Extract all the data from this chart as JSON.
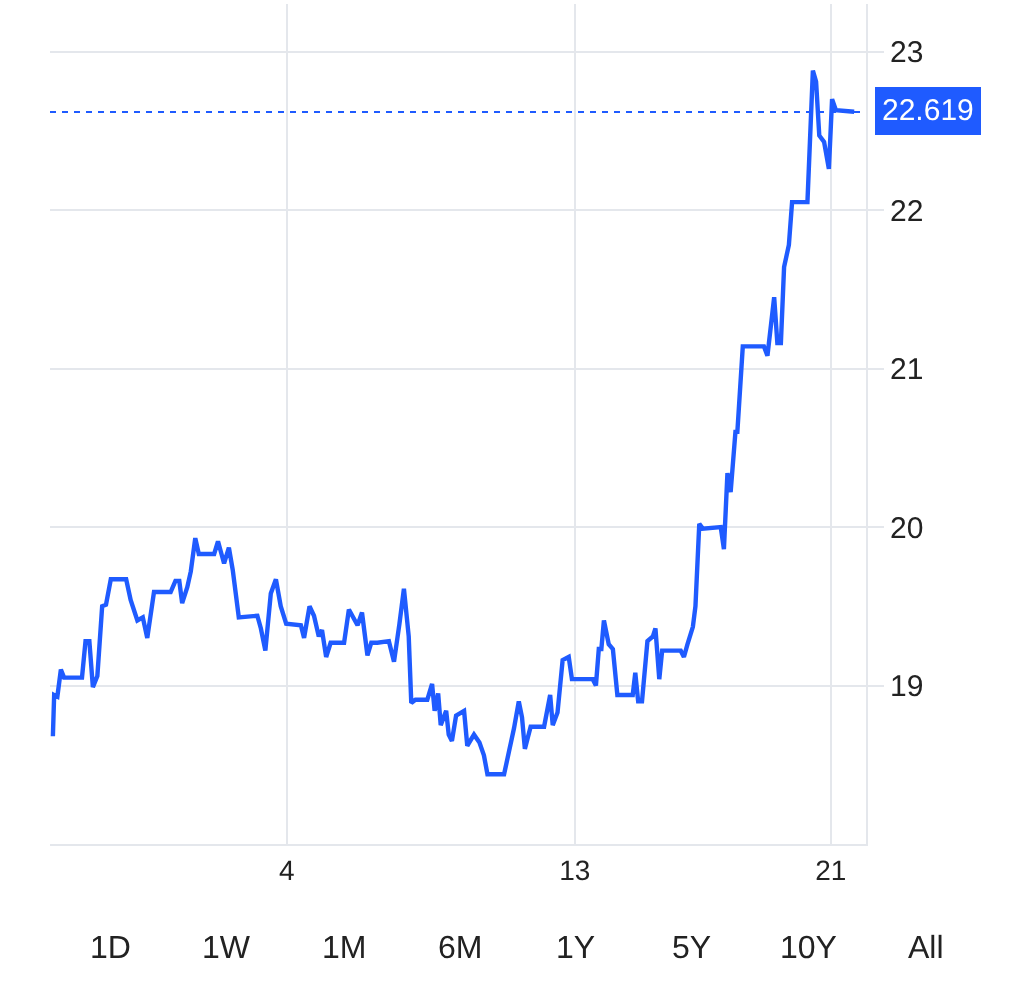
{
  "chart_data": {
    "type": "line",
    "x": [
      -3.31,
      -3.27,
      -3.17,
      -3.06,
      -2.96,
      -2.4,
      -2.29,
      -2.17,
      -2.06,
      -1.92,
      -1.77,
      -1.65,
      -1.5,
      -1.02,
      -0.88,
      -0.67,
      -0.5,
      -0.36,
      -0.15,
      0.37,
      0.52,
      0.64,
      0.73,
      0.89,
      1.0,
      1.14,
      1.25,
      1.73,
      1.85,
      2.04,
      2.19,
      2.31,
      2.5,
      3.08,
      3.19,
      3.33,
      3.5,
      3.66,
      3.81,
      3.98,
      4.44,
      4.54,
      4.71,
      4.85,
      5.0,
      5.1,
      5.23,
      5.37,
      5.79,
      5.94,
      6.21,
      6.35,
      6.52,
      6.64,
      6.83,
      7.19,
      7.35,
      7.52,
      7.66,
      7.81,
      7.89,
      8.02,
      8.39,
      8.54,
      8.62,
      8.73,
      8.81,
      8.98,
      9.06,
      9.16,
      9.29,
      9.54,
      9.64,
      9.85,
      10.02,
      10.16,
      10.27,
      10.79,
      10.94,
      11.1,
      11.25,
      11.35,
      11.44,
      11.62,
      12.04,
      12.23,
      12.31,
      12.46,
      12.62,
      12.81,
      12.91,
      13.56,
      13.66,
      13.75,
      13.83,
      13.91,
      14.06,
      14.19,
      14.33,
      14.81,
      14.89,
      14.98,
      15.1,
      15.27,
      15.44,
      15.52,
      15.64,
      15.73,
      16.31,
      16.41,
      16.52,
      16.69,
      16.77,
      16.89,
      17.0,
      17.56,
      17.66,
      17.77,
      17.87,
      18.02,
      18.08,
      18.25,
      18.35,
      18.91,
      19.02,
      19.23,
      19.33,
      19.44,
      19.54,
      19.69,
      19.79,
      20.27,
      20.44,
      20.54,
      20.64,
      20.79,
      20.94,
      21.04,
      21.16,
      21.73
    ],
    "series": [
      {
        "color": "#1f5bff",
        "values": [
          18.68,
          18.94,
          18.93,
          19.1,
          19.05,
          19.05,
          19.28,
          19.28,
          18.99,
          19.06,
          19.5,
          19.51,
          19.67,
          19.67,
          19.54,
          19.41,
          19.43,
          19.3,
          19.59,
          19.59,
          19.66,
          19.66,
          19.52,
          19.62,
          19.72,
          19.93,
          19.83,
          19.83,
          19.91,
          19.77,
          19.87,
          19.73,
          19.43,
          19.44,
          19.36,
          19.22,
          19.58,
          19.67,
          19.5,
          19.39,
          19.38,
          19.3,
          19.5,
          19.44,
          19.31,
          19.35,
          19.18,
          19.27,
          19.27,
          19.48,
          19.38,
          19.46,
          19.19,
          19.27,
          19.27,
          19.28,
          19.15,
          19.39,
          19.61,
          19.31,
          18.89,
          18.91,
          18.91,
          19.01,
          18.84,
          18.95,
          18.75,
          18.84,
          18.69,
          18.65,
          18.81,
          18.84,
          18.62,
          18.69,
          18.64,
          18.56,
          18.44,
          18.44,
          18.58,
          18.73,
          18.9,
          18.8,
          18.6,
          18.74,
          18.74,
          18.94,
          18.75,
          18.83,
          19.16,
          19.18,
          19.04,
          19.04,
          19.0,
          19.23,
          19.23,
          19.41,
          19.26,
          19.23,
          18.94,
          18.94,
          19.08,
          18.9,
          18.9,
          19.28,
          19.31,
          19.36,
          19.04,
          19.22,
          19.22,
          19.18,
          19.26,
          19.37,
          19.5,
          20.02,
          19.99,
          20.0,
          19.86,
          20.34,
          20.22,
          20.6,
          20.6,
          21.14,
          21.14,
          21.14,
          21.08,
          21.45,
          21.16,
          21.16,
          21.64,
          21.78,
          22.05,
          22.05,
          22.88,
          22.81,
          22.47,
          22.43,
          22.26,
          22.7,
          22.63,
          22.62
        ]
      }
    ],
    "xlim": [
      -3.4,
      22.1
    ],
    "xticks": [
      4,
      13,
      21
    ],
    "ylim": [
      18,
      23.3
    ],
    "yticks": [
      19,
      20,
      21,
      22,
      23
    ],
    "grid": true,
    "marker": "none",
    "line_style": "solid",
    "ref_lines": [
      {
        "axis": "y",
        "value": 22.619,
        "label": "22.619",
        "color": "#1f5bff",
        "line_style": "dotted"
      }
    ],
    "annotations": [
      "1D",
      "1W",
      "1M",
      "6M",
      "1Y",
      "5Y",
      "10Y",
      "All"
    ]
  }
}
